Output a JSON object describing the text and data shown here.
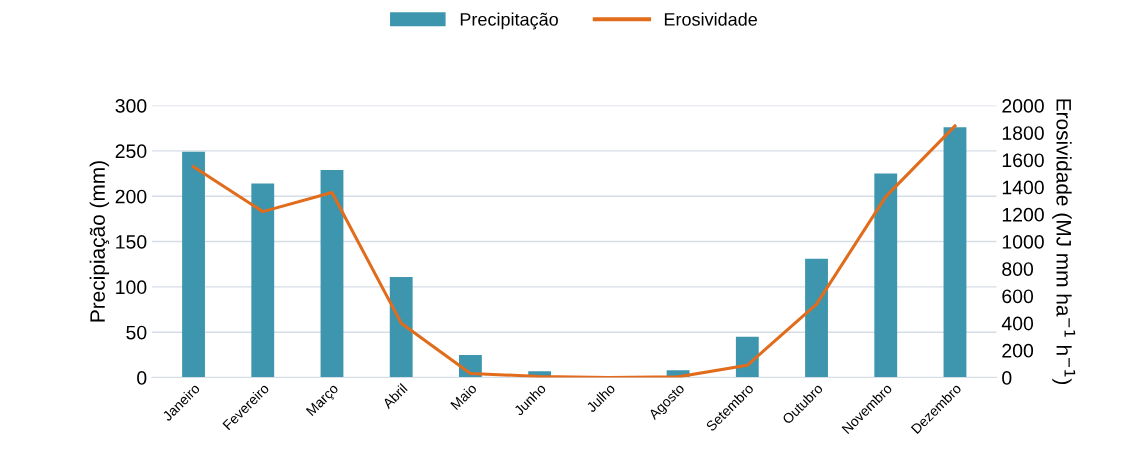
{
  "chart_data": {
    "type": "bar",
    "categories": [
      "Janeiro",
      "Fevereiro",
      "Março",
      "Abril",
      "Maio",
      "Junho",
      "Julho",
      "Agosto",
      "Setembro",
      "Outubro",
      "Novembro",
      "Dezembro"
    ],
    "series": [
      {
        "name": "Precipitação",
        "color": "#3e96ae",
        "values": [
          249,
          214,
          229,
          111,
          25,
          7,
          0,
          8,
          45,
          131,
          225,
          276
        ]
      },
      {
        "name": "Erosividade",
        "color": "#e06c1c",
        "type": "line",
        "axis": "y2",
        "values": [
          1550,
          1220,
          1360,
          400,
          30,
          8,
          0,
          5,
          90,
          540,
          1330,
          1850
        ]
      }
    ],
    "ylabel": "Precipiação (mm)",
    "y2label": "Erosividade (MJ mm ha$^{−1}$ h$^{−1}$)",
    "ylim": [
      0,
      300
    ],
    "yticks": [
      0,
      50,
      100,
      150,
      200,
      250,
      300
    ],
    "y2lim": [
      0,
      2000
    ],
    "y2ticks": [
      0,
      200,
      400,
      600,
      800,
      1000,
      1200,
      1400,
      1600,
      1800,
      2000
    ],
    "grid": "y",
    "legend": "top",
    "marker": "none",
    "line_style": "solid"
  }
}
